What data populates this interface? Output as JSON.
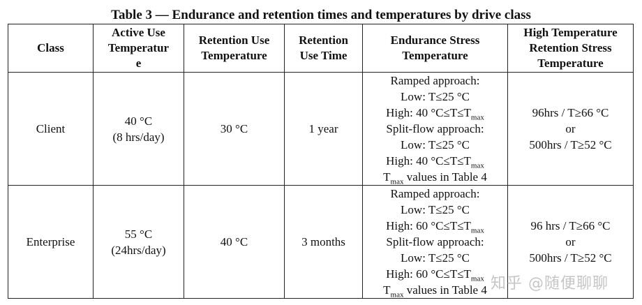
{
  "caption": "Table 3 — Endurance and retention times and temperatures by drive class",
  "headers": {
    "class": "Class",
    "active_use_1": "Active Use",
    "active_use_2": "Temperatur",
    "active_use_3": "e",
    "retention_use_1": "Retention Use",
    "retention_use_2": "Temperature",
    "retention_time_1": "Retention",
    "retention_time_2": "Use Time",
    "endurance_1": "Endurance Stress",
    "endurance_2": "Temperature",
    "high_temp_1": "High Temperature",
    "high_temp_2": "Retention Stress",
    "high_temp_3": "Temperature"
  },
  "rows": [
    {
      "class": "Client",
      "active_temp": "40 °C",
      "active_hours": "(8 hrs/day)",
      "retention_temp": "30 °C",
      "retention_time": "1 year",
      "endurance": {
        "ramped": "Ramped approach:",
        "low": "Low: T≤25 °C",
        "high": "High: 40 °C≤T≤T",
        "high_sub": "max",
        "split": "Split-flow approach:",
        "low2": "Low: T≤25 °C",
        "high2": "High: 40 °C≤T≤T",
        "high2_sub": "max",
        "tmax_T": "T",
        "tmax_sub": "max",
        "tmax_rest": " values in Table 4"
      },
      "high_temp_a": "96hrs / T≥66 °C",
      "high_temp_or": "or",
      "high_temp_b": "500hrs / T≥52 °C"
    },
    {
      "class": "Enterprise",
      "active_temp": "55 °C",
      "active_hours": "(24hrs/day)",
      "retention_temp": "40 °C",
      "retention_time": "3 months",
      "endurance": {
        "ramped": "Ramped approach:",
        "low": "Low: T≤25 °C",
        "high": "High: 60 °C≤T≤T",
        "high_sub": "max",
        "split": "Split-flow approach:",
        "low2": "Low: T≤25 °C",
        "high2": "High: 60 °C≤T≤T",
        "high2_sub": "max",
        "tmax_T": "T",
        "tmax_sub": "max",
        "tmax_rest": " values in Table 4"
      },
      "high_temp_a": "96 hrs / T≥66 °C",
      "high_temp_or": "or",
      "high_temp_b": "500hrs / T≥52 °C"
    }
  ],
  "watermark": "知乎 @随便聊聊"
}
